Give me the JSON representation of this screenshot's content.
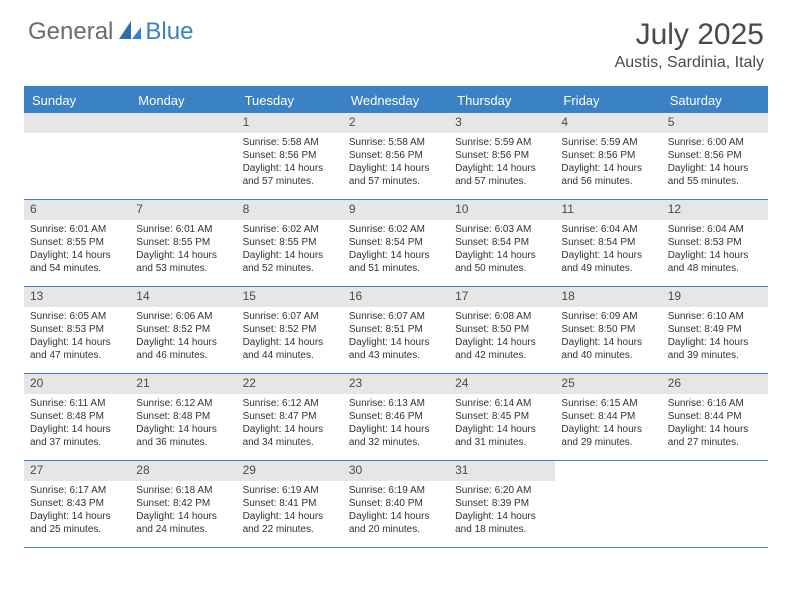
{
  "logo": {
    "general": "General",
    "blue": "Blue"
  },
  "title": "July 2025",
  "location": "Austis, Sardinia, Italy",
  "weekdays": [
    "Sunday",
    "Monday",
    "Tuesday",
    "Wednesday",
    "Thursday",
    "Friday",
    "Saturday"
  ],
  "colors": {
    "brand_blue": "#3b82c4",
    "header_bg": "#3b82c4",
    "daynum_bg": "#e6e6e6",
    "text_dark": "#4a4a4a",
    "text_body": "#333333",
    "logo_gray": "#6b6b6b"
  },
  "weeks": [
    [
      {
        "empty": true
      },
      {
        "empty": true
      },
      {
        "day": "1",
        "sunrise": "Sunrise: 5:58 AM",
        "sunset": "Sunset: 8:56 PM",
        "daylight1": "Daylight: 14 hours",
        "daylight2": "and 57 minutes."
      },
      {
        "day": "2",
        "sunrise": "Sunrise: 5:58 AM",
        "sunset": "Sunset: 8:56 PM",
        "daylight1": "Daylight: 14 hours",
        "daylight2": "and 57 minutes."
      },
      {
        "day": "3",
        "sunrise": "Sunrise: 5:59 AM",
        "sunset": "Sunset: 8:56 PM",
        "daylight1": "Daylight: 14 hours",
        "daylight2": "and 57 minutes."
      },
      {
        "day": "4",
        "sunrise": "Sunrise: 5:59 AM",
        "sunset": "Sunset: 8:56 PM",
        "daylight1": "Daylight: 14 hours",
        "daylight2": "and 56 minutes."
      },
      {
        "day": "5",
        "sunrise": "Sunrise: 6:00 AM",
        "sunset": "Sunset: 8:56 PM",
        "daylight1": "Daylight: 14 hours",
        "daylight2": "and 55 minutes."
      }
    ],
    [
      {
        "day": "6",
        "sunrise": "Sunrise: 6:01 AM",
        "sunset": "Sunset: 8:55 PM",
        "daylight1": "Daylight: 14 hours",
        "daylight2": "and 54 minutes."
      },
      {
        "day": "7",
        "sunrise": "Sunrise: 6:01 AM",
        "sunset": "Sunset: 8:55 PM",
        "daylight1": "Daylight: 14 hours",
        "daylight2": "and 53 minutes."
      },
      {
        "day": "8",
        "sunrise": "Sunrise: 6:02 AM",
        "sunset": "Sunset: 8:55 PM",
        "daylight1": "Daylight: 14 hours",
        "daylight2": "and 52 minutes."
      },
      {
        "day": "9",
        "sunrise": "Sunrise: 6:02 AM",
        "sunset": "Sunset: 8:54 PM",
        "daylight1": "Daylight: 14 hours",
        "daylight2": "and 51 minutes."
      },
      {
        "day": "10",
        "sunrise": "Sunrise: 6:03 AM",
        "sunset": "Sunset: 8:54 PM",
        "daylight1": "Daylight: 14 hours",
        "daylight2": "and 50 minutes."
      },
      {
        "day": "11",
        "sunrise": "Sunrise: 6:04 AM",
        "sunset": "Sunset: 8:54 PM",
        "daylight1": "Daylight: 14 hours",
        "daylight2": "and 49 minutes."
      },
      {
        "day": "12",
        "sunrise": "Sunrise: 6:04 AM",
        "sunset": "Sunset: 8:53 PM",
        "daylight1": "Daylight: 14 hours",
        "daylight2": "and 48 minutes."
      }
    ],
    [
      {
        "day": "13",
        "sunrise": "Sunrise: 6:05 AM",
        "sunset": "Sunset: 8:53 PM",
        "daylight1": "Daylight: 14 hours",
        "daylight2": "and 47 minutes."
      },
      {
        "day": "14",
        "sunrise": "Sunrise: 6:06 AM",
        "sunset": "Sunset: 8:52 PM",
        "daylight1": "Daylight: 14 hours",
        "daylight2": "and 46 minutes."
      },
      {
        "day": "15",
        "sunrise": "Sunrise: 6:07 AM",
        "sunset": "Sunset: 8:52 PM",
        "daylight1": "Daylight: 14 hours",
        "daylight2": "and 44 minutes."
      },
      {
        "day": "16",
        "sunrise": "Sunrise: 6:07 AM",
        "sunset": "Sunset: 8:51 PM",
        "daylight1": "Daylight: 14 hours",
        "daylight2": "and 43 minutes."
      },
      {
        "day": "17",
        "sunrise": "Sunrise: 6:08 AM",
        "sunset": "Sunset: 8:50 PM",
        "daylight1": "Daylight: 14 hours",
        "daylight2": "and 42 minutes."
      },
      {
        "day": "18",
        "sunrise": "Sunrise: 6:09 AM",
        "sunset": "Sunset: 8:50 PM",
        "daylight1": "Daylight: 14 hours",
        "daylight2": "and 40 minutes."
      },
      {
        "day": "19",
        "sunrise": "Sunrise: 6:10 AM",
        "sunset": "Sunset: 8:49 PM",
        "daylight1": "Daylight: 14 hours",
        "daylight2": "and 39 minutes."
      }
    ],
    [
      {
        "day": "20",
        "sunrise": "Sunrise: 6:11 AM",
        "sunset": "Sunset: 8:48 PM",
        "daylight1": "Daylight: 14 hours",
        "daylight2": "and 37 minutes."
      },
      {
        "day": "21",
        "sunrise": "Sunrise: 6:12 AM",
        "sunset": "Sunset: 8:48 PM",
        "daylight1": "Daylight: 14 hours",
        "daylight2": "and 36 minutes."
      },
      {
        "day": "22",
        "sunrise": "Sunrise: 6:12 AM",
        "sunset": "Sunset: 8:47 PM",
        "daylight1": "Daylight: 14 hours",
        "daylight2": "and 34 minutes."
      },
      {
        "day": "23",
        "sunrise": "Sunrise: 6:13 AM",
        "sunset": "Sunset: 8:46 PM",
        "daylight1": "Daylight: 14 hours",
        "daylight2": "and 32 minutes."
      },
      {
        "day": "24",
        "sunrise": "Sunrise: 6:14 AM",
        "sunset": "Sunset: 8:45 PM",
        "daylight1": "Daylight: 14 hours",
        "daylight2": "and 31 minutes."
      },
      {
        "day": "25",
        "sunrise": "Sunrise: 6:15 AM",
        "sunset": "Sunset: 8:44 PM",
        "daylight1": "Daylight: 14 hours",
        "daylight2": "and 29 minutes."
      },
      {
        "day": "26",
        "sunrise": "Sunrise: 6:16 AM",
        "sunset": "Sunset: 8:44 PM",
        "daylight1": "Daylight: 14 hours",
        "daylight2": "and 27 minutes."
      }
    ],
    [
      {
        "day": "27",
        "sunrise": "Sunrise: 6:17 AM",
        "sunset": "Sunset: 8:43 PM",
        "daylight1": "Daylight: 14 hours",
        "daylight2": "and 25 minutes."
      },
      {
        "day": "28",
        "sunrise": "Sunrise: 6:18 AM",
        "sunset": "Sunset: 8:42 PM",
        "daylight1": "Daylight: 14 hours",
        "daylight2": "and 24 minutes."
      },
      {
        "day": "29",
        "sunrise": "Sunrise: 6:19 AM",
        "sunset": "Sunset: 8:41 PM",
        "daylight1": "Daylight: 14 hours",
        "daylight2": "and 22 minutes."
      },
      {
        "day": "30",
        "sunrise": "Sunrise: 6:19 AM",
        "sunset": "Sunset: 8:40 PM",
        "daylight1": "Daylight: 14 hours",
        "daylight2": "and 20 minutes."
      },
      {
        "day": "31",
        "sunrise": "Sunrise: 6:20 AM",
        "sunset": "Sunset: 8:39 PM",
        "daylight1": "Daylight: 14 hours",
        "daylight2": "and 18 minutes."
      },
      {
        "empty": true
      },
      {
        "empty": true
      }
    ]
  ]
}
